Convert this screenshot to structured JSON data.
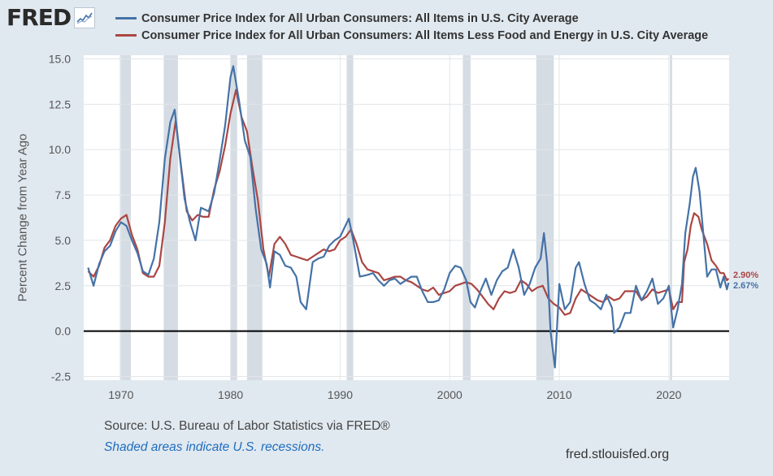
{
  "header": {
    "logo_text": "FRED",
    "logo_icon": "line-chart-icon"
  },
  "colors": {
    "series_all_items": "#4572a7",
    "series_core": "#aa4643",
    "recession_shade": "#d5dce3",
    "zero_line": "#000000",
    "background": "#e1e9f0",
    "plot_background": "#ffffff"
  },
  "footer": {
    "source": "Source: U.S. Bureau of Labor Statistics via FRED®",
    "recession_note": "Shaded areas indicate U.S. recessions.",
    "url": "fred.stlouisfed.org"
  },
  "chart_data": {
    "type": "line",
    "title": "",
    "xlabel": "",
    "ylabel": "Percent Change from Year Ago",
    "xlim": [
      1966.6,
      2025.5
    ],
    "ylim": [
      -2.7,
      15.2
    ],
    "grid": true,
    "legend_position": "top",
    "x_ticks": [
      1970,
      1980,
      1990,
      2000,
      2010,
      2020
    ],
    "x_tick_labels": [
      "1970",
      "1980",
      "1990",
      "2000",
      "2010",
      "2020"
    ],
    "y_ticks": [
      -2.5,
      0.0,
      2.5,
      5.0,
      7.5,
      10.0,
      12.5,
      15.0
    ],
    "y_tick_labels": [
      "-2.5",
      "0.0",
      "2.5",
      "5.0",
      "7.5",
      "10.0",
      "12.5",
      "15.0"
    ],
    "recessions": [
      [
        1969.9,
        1970.9
      ],
      [
        1973.9,
        1975.2
      ],
      [
        1980.0,
        1980.6
      ],
      [
        1981.5,
        1982.9
      ],
      [
        1990.6,
        1991.2
      ],
      [
        2001.2,
        2001.9
      ],
      [
        2007.9,
        2009.5
      ],
      [
        2020.1,
        2020.3
      ]
    ],
    "series": [
      {
        "name": "Consumer Price Index for All Urban Consumers: All Items in U.S. City Average",
        "end_label": "2.67%",
        "points": [
          [
            1967.0,
            3.5
          ],
          [
            1967.5,
            2.5
          ],
          [
            1968.0,
            3.7
          ],
          [
            1968.5,
            4.4
          ],
          [
            1969.0,
            4.7
          ],
          [
            1969.5,
            5.5
          ],
          [
            1970.0,
            6.0
          ],
          [
            1970.5,
            5.8
          ],
          [
            1971.0,
            5.0
          ],
          [
            1971.5,
            4.3
          ],
          [
            1972.0,
            3.3
          ],
          [
            1972.5,
            3.1
          ],
          [
            1973.0,
            4.0
          ],
          [
            1973.5,
            6.0
          ],
          [
            1974.0,
            9.5
          ],
          [
            1974.5,
            11.5
          ],
          [
            1974.9,
            12.2
          ],
          [
            1975.3,
            10.0
          ],
          [
            1975.8,
            7.3
          ],
          [
            1976.3,
            6.0
          ],
          [
            1976.8,
            5.0
          ],
          [
            1977.3,
            6.8
          ],
          [
            1978.0,
            6.6
          ],
          [
            1978.5,
            7.6
          ],
          [
            1979.0,
            9.4
          ],
          [
            1979.5,
            11.3
          ],
          [
            1980.0,
            14.0
          ],
          [
            1980.25,
            14.6
          ],
          [
            1980.8,
            12.6
          ],
          [
            1981.3,
            10.5
          ],
          [
            1981.8,
            9.6
          ],
          [
            1982.3,
            6.7
          ],
          [
            1982.8,
            4.5
          ],
          [
            1983.3,
            3.7
          ],
          [
            1983.6,
            2.4
          ],
          [
            1984.0,
            4.4
          ],
          [
            1984.5,
            4.2
          ],
          [
            1985.0,
            3.6
          ],
          [
            1985.5,
            3.5
          ],
          [
            1986.0,
            3.0
          ],
          [
            1986.4,
            1.6
          ],
          [
            1986.9,
            1.2
          ],
          [
            1987.5,
            3.8
          ],
          [
            1988.0,
            4.0
          ],
          [
            1988.5,
            4.1
          ],
          [
            1989.0,
            4.7
          ],
          [
            1989.5,
            5.0
          ],
          [
            1990.0,
            5.2
          ],
          [
            1990.8,
            6.2
          ],
          [
            1991.2,
            5.0
          ],
          [
            1991.8,
            3.0
          ],
          [
            1992.5,
            3.1
          ],
          [
            1993.0,
            3.2
          ],
          [
            1993.5,
            2.8
          ],
          [
            1994.0,
            2.5
          ],
          [
            1994.5,
            2.8
          ],
          [
            1995.0,
            2.9
          ],
          [
            1995.5,
            2.6
          ],
          [
            1996.0,
            2.8
          ],
          [
            1996.5,
            3.0
          ],
          [
            1997.0,
            3.0
          ],
          [
            1997.5,
            2.2
          ],
          [
            1998.0,
            1.6
          ],
          [
            1998.5,
            1.6
          ],
          [
            1999.0,
            1.7
          ],
          [
            1999.5,
            2.3
          ],
          [
            2000.0,
            3.2
          ],
          [
            2000.5,
            3.6
          ],
          [
            2001.0,
            3.5
          ],
          [
            2001.5,
            2.8
          ],
          [
            2001.9,
            1.6
          ],
          [
            2002.3,
            1.3
          ],
          [
            2002.8,
            2.2
          ],
          [
            2003.3,
            2.9
          ],
          [
            2003.8,
            2.0
          ],
          [
            2004.3,
            2.8
          ],
          [
            2004.8,
            3.3
          ],
          [
            2005.3,
            3.5
          ],
          [
            2005.8,
            4.5
          ],
          [
            2006.3,
            3.5
          ],
          [
            2006.8,
            2.0
          ],
          [
            2007.3,
            2.6
          ],
          [
            2007.8,
            3.5
          ],
          [
            2008.3,
            4.0
          ],
          [
            2008.6,
            5.4
          ],
          [
            2008.9,
            3.7
          ],
          [
            2009.2,
            0.0
          ],
          [
            2009.6,
            -2.0
          ],
          [
            2010.0,
            2.6
          ],
          [
            2010.5,
            1.2
          ],
          [
            2011.0,
            1.6
          ],
          [
            2011.5,
            3.5
          ],
          [
            2011.8,
            3.8
          ],
          [
            2012.3,
            2.6
          ],
          [
            2012.8,
            1.7
          ],
          [
            2013.3,
            1.5
          ],
          [
            2013.8,
            1.2
          ],
          [
            2014.3,
            2.0
          ],
          [
            2014.8,
            1.3
          ],
          [
            2015.0,
            -0.1
          ],
          [
            2015.5,
            0.2
          ],
          [
            2016.0,
            1.0
          ],
          [
            2016.5,
            1.0
          ],
          [
            2017.0,
            2.5
          ],
          [
            2017.5,
            1.7
          ],
          [
            2018.0,
            2.2
          ],
          [
            2018.5,
            2.9
          ],
          [
            2019.0,
            1.5
          ],
          [
            2019.5,
            1.8
          ],
          [
            2020.0,
            2.5
          ],
          [
            2020.4,
            0.2
          ],
          [
            2020.8,
            1.2
          ],
          [
            2021.2,
            2.6
          ],
          [
            2021.5,
            5.4
          ],
          [
            2021.9,
            7.0
          ],
          [
            2022.2,
            8.5
          ],
          [
            2022.45,
            9.0
          ],
          [
            2022.8,
            7.7
          ],
          [
            2023.2,
            5.0
          ],
          [
            2023.5,
            3.0
          ],
          [
            2023.9,
            3.4
          ],
          [
            2024.3,
            3.4
          ],
          [
            2024.7,
            2.4
          ],
          [
            2025.0,
            3.0
          ],
          [
            2025.3,
            2.3
          ],
          [
            2025.45,
            2.67
          ]
        ]
      },
      {
        "name": "Consumer Price Index for All Urban Consumers: All Items Less Food and Energy in U.S. City Average",
        "end_label": "2.90%",
        "points": [
          [
            1967.0,
            3.3
          ],
          [
            1967.5,
            3.0
          ],
          [
            1968.0,
            3.6
          ],
          [
            1968.5,
            4.6
          ],
          [
            1969.0,
            5.0
          ],
          [
            1969.5,
            5.8
          ],
          [
            1970.0,
            6.2
          ],
          [
            1970.5,
            6.4
          ],
          [
            1971.0,
            5.3
          ],
          [
            1971.5,
            4.5
          ],
          [
            1972.0,
            3.2
          ],
          [
            1972.5,
            3.0
          ],
          [
            1973.0,
            3.0
          ],
          [
            1973.5,
            3.6
          ],
          [
            1974.0,
            6.0
          ],
          [
            1974.5,
            9.5
          ],
          [
            1975.0,
            11.6
          ],
          [
            1975.5,
            9.0
          ],
          [
            1976.0,
            6.6
          ],
          [
            1976.5,
            6.1
          ],
          [
            1977.0,
            6.4
          ],
          [
            1977.5,
            6.3
          ],
          [
            1978.0,
            6.3
          ],
          [
            1978.5,
            7.8
          ],
          [
            1979.0,
            8.8
          ],
          [
            1979.5,
            10.2
          ],
          [
            1980.0,
            12.0
          ],
          [
            1980.5,
            13.3
          ],
          [
            1981.0,
            11.8
          ],
          [
            1981.5,
            11.0
          ],
          [
            1982.0,
            9.0
          ],
          [
            1982.5,
            7.2
          ],
          [
            1983.0,
            4.5
          ],
          [
            1983.5,
            3.0
          ],
          [
            1984.0,
            4.8
          ],
          [
            1984.5,
            5.2
          ],
          [
            1985.0,
            4.8
          ],
          [
            1985.5,
            4.2
          ],
          [
            1986.0,
            4.1
          ],
          [
            1986.5,
            4.0
          ],
          [
            1987.0,
            3.9
          ],
          [
            1987.5,
            4.1
          ],
          [
            1988.0,
            4.3
          ],
          [
            1988.5,
            4.5
          ],
          [
            1989.0,
            4.4
          ],
          [
            1989.5,
            4.5
          ],
          [
            1990.0,
            5.0
          ],
          [
            1990.5,
            5.2
          ],
          [
            1991.0,
            5.6
          ],
          [
            1991.5,
            4.8
          ],
          [
            1992.0,
            3.8
          ],
          [
            1992.5,
            3.4
          ],
          [
            1993.0,
            3.3
          ],
          [
            1993.5,
            3.2
          ],
          [
            1994.0,
            2.8
          ],
          [
            1994.5,
            2.9
          ],
          [
            1995.0,
            3.0
          ],
          [
            1995.5,
            3.0
          ],
          [
            1996.0,
            2.8
          ],
          [
            1996.5,
            2.7
          ],
          [
            1997.0,
            2.5
          ],
          [
            1997.5,
            2.3
          ],
          [
            1998.0,
            2.2
          ],
          [
            1998.5,
            2.4
          ],
          [
            1999.0,
            2.0
          ],
          [
            1999.5,
            2.1
          ],
          [
            2000.0,
            2.2
          ],
          [
            2000.5,
            2.5
          ],
          [
            2001.0,
            2.6
          ],
          [
            2001.5,
            2.7
          ],
          [
            2002.0,
            2.6
          ],
          [
            2002.5,
            2.3
          ],
          [
            2003.0,
            1.9
          ],
          [
            2003.5,
            1.5
          ],
          [
            2004.0,
            1.2
          ],
          [
            2004.5,
            1.8
          ],
          [
            2005.0,
            2.2
          ],
          [
            2005.5,
            2.1
          ],
          [
            2006.0,
            2.2
          ],
          [
            2006.5,
            2.8
          ],
          [
            2007.0,
            2.6
          ],
          [
            2007.5,
            2.2
          ],
          [
            2008.0,
            2.4
          ],
          [
            2008.5,
            2.5
          ],
          [
            2009.0,
            1.8
          ],
          [
            2009.5,
            1.5
          ],
          [
            2010.0,
            1.3
          ],
          [
            2010.5,
            0.9
          ],
          [
            2011.0,
            1.0
          ],
          [
            2011.5,
            1.8
          ],
          [
            2012.0,
            2.3
          ],
          [
            2012.5,
            2.1
          ],
          [
            2013.0,
            1.9
          ],
          [
            2013.5,
            1.7
          ],
          [
            2014.0,
            1.6
          ],
          [
            2014.5,
            1.9
          ],
          [
            2015.0,
            1.7
          ],
          [
            2015.5,
            1.8
          ],
          [
            2016.0,
            2.2
          ],
          [
            2016.5,
            2.2
          ],
          [
            2017.0,
            2.2
          ],
          [
            2017.5,
            1.7
          ],
          [
            2018.0,
            1.9
          ],
          [
            2018.5,
            2.3
          ],
          [
            2019.0,
            2.1
          ],
          [
            2019.5,
            2.2
          ],
          [
            2020.0,
            2.3
          ],
          [
            2020.4,
            1.2
          ],
          [
            2020.8,
            1.6
          ],
          [
            2021.2,
            1.6
          ],
          [
            2021.4,
            3.8
          ],
          [
            2021.7,
            4.5
          ],
          [
            2022.0,
            5.8
          ],
          [
            2022.3,
            6.5
          ],
          [
            2022.7,
            6.3
          ],
          [
            2023.0,
            5.6
          ],
          [
            2023.5,
            4.8
          ],
          [
            2023.9,
            3.9
          ],
          [
            2024.3,
            3.6
          ],
          [
            2024.7,
            3.2
          ],
          [
            2025.0,
            3.2
          ],
          [
            2025.3,
            2.8
          ],
          [
            2025.45,
            2.9
          ]
        ]
      }
    ]
  }
}
